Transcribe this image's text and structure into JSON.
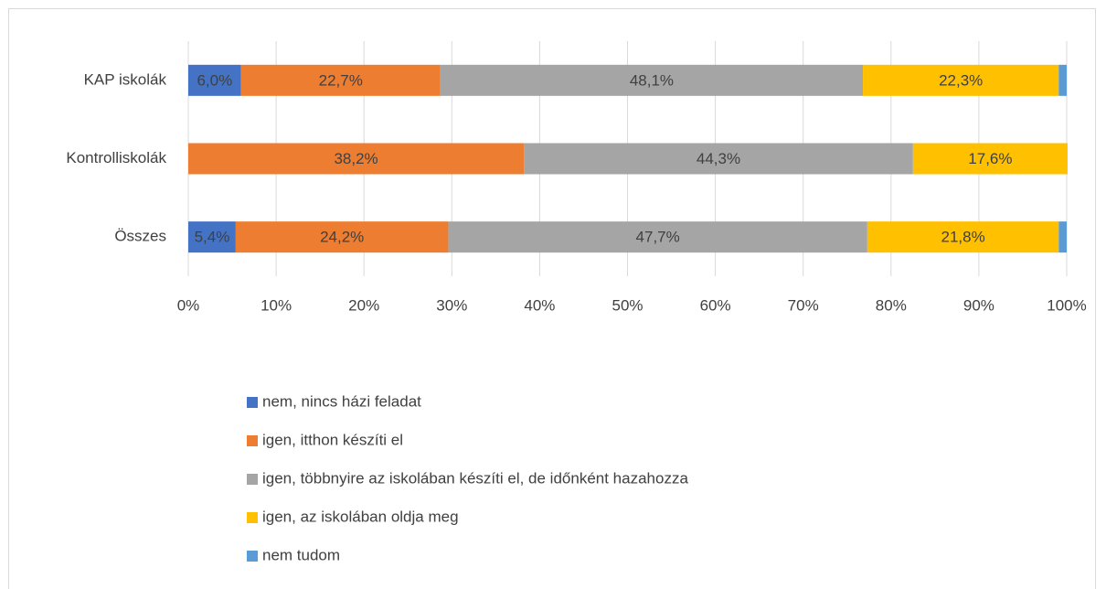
{
  "chart_data": {
    "type": "stacked-bar-horizontal",
    "categories": [
      "KAP iskolák",
      "Kontrolliskolák",
      "Összes"
    ],
    "series": [
      {
        "name": "nem, nincs házi feladat",
        "color": "#4472c4",
        "values": [
          6.0,
          0,
          5.4
        ],
        "value_labels": [
          "6,0%",
          null,
          "5,4%"
        ]
      },
      {
        "name": "igen, itthon készíti el",
        "color": "#ed7d31",
        "values": [
          22.7,
          38.2,
          24.2
        ],
        "value_labels": [
          "22,7%",
          "38,2%",
          "24,2%"
        ]
      },
      {
        "name": "igen, többnyire az iskolában készíti el, de időnként hazahozza",
        "color": "#a5a5a5",
        "values": [
          48.1,
          44.3,
          47.7
        ],
        "value_labels": [
          "48,1%",
          "44,3%",
          "47,7%"
        ]
      },
      {
        "name": "igen, az iskolában oldja meg",
        "color": "#ffc000",
        "values": [
          22.3,
          17.6,
          21.8
        ],
        "value_labels": [
          "22,3%",
          "17,6%",
          "21,8%"
        ]
      },
      {
        "name": "nem tudom",
        "color": "#5b9bd5",
        "values": [
          0.9,
          0,
          0.9
        ],
        "value_labels": [
          null,
          null,
          null
        ]
      }
    ],
    "xlim": [
      0,
      100
    ],
    "xticks": [
      {
        "value": 0,
        "label": "0%"
      },
      {
        "value": 10,
        "label": "10%"
      },
      {
        "value": 20,
        "label": "20%"
      },
      {
        "value": 30,
        "label": "30%"
      },
      {
        "value": 40,
        "label": "40%"
      },
      {
        "value": 50,
        "label": "50%"
      },
      {
        "value": 60,
        "label": "60%"
      },
      {
        "value": 70,
        "label": "70%"
      },
      {
        "value": 80,
        "label": "80%"
      },
      {
        "value": 90,
        "label": "90%"
      },
      {
        "value": 100,
        "label": "100%"
      }
    ],
    "grid": true,
    "legend": "bottom"
  }
}
